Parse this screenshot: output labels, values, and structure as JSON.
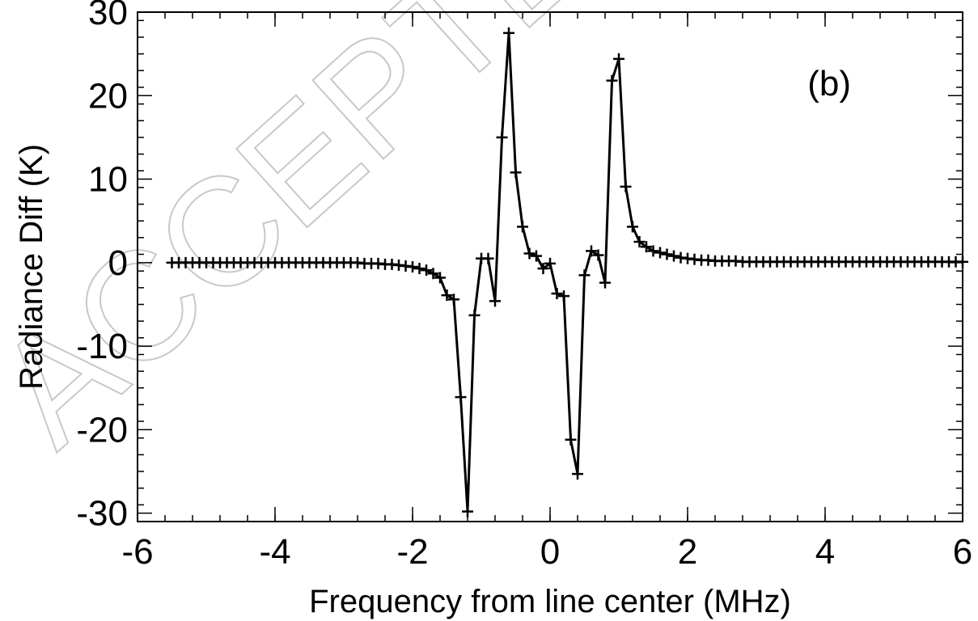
{
  "chart_data": {
    "type": "line",
    "title": "",
    "xlabel": "Frequency from line center (MHz)",
    "ylabel": "Radiance Diff (K)",
    "panel_label": "(b)",
    "watermark": "ACCEPTED",
    "xlim": [
      -6,
      6
    ],
    "ylim": [
      -31,
      30
    ],
    "x_ticks": [
      -6,
      -4,
      -2,
      0,
      2,
      4,
      6
    ],
    "x_tick_labels": [
      "-6",
      "-4",
      "-2",
      "0",
      "2",
      "4",
      "6"
    ],
    "y_ticks": [
      -30,
      -20,
      -10,
      0,
      10,
      20,
      30
    ],
    "y_tick_labels": [
      "-30",
      "-20",
      "-10",
      "0",
      "10",
      "20",
      "30"
    ],
    "x_minor_step": 0.4,
    "y_minor_step": 2,
    "grid": false,
    "marker": "plus",
    "color": "#000000",
    "series": [
      {
        "x": [
          -5.5,
          -5.4,
          -5.3,
          -5.2,
          -5.1,
          -5.0,
          -4.9,
          -4.8,
          -4.7,
          -4.6,
          -4.5,
          -4.4,
          -4.3,
          -4.2,
          -4.1,
          -4.0,
          -3.9,
          -3.8,
          -3.7,
          -3.6,
          -3.5,
          -3.4,
          -3.3,
          -3.2,
          -3.1,
          -3.0,
          -2.9,
          -2.8,
          -2.7,
          -2.6,
          -2.5,
          -2.4,
          -2.3,
          -2.2,
          -2.1,
          -2.0,
          -1.9,
          -1.8,
          -1.7,
          -1.6,
          -1.5,
          -1.4,
          -1.3,
          -1.2,
          -1.1,
          -1.0,
          -0.9,
          -0.8,
          -0.7,
          -0.6,
          -0.5,
          -0.4,
          -0.3,
          -0.2,
          -0.1,
          0.0,
          0.1,
          0.2,
          0.3,
          0.4,
          0.5,
          0.6,
          0.7,
          0.8,
          0.9,
          1.0,
          1.1,
          1.2,
          1.3,
          1.4,
          1.5,
          1.6,
          1.7,
          1.8,
          1.9,
          2.0,
          2.1,
          2.2,
          2.3,
          2.4,
          2.5,
          2.6,
          2.7,
          2.8,
          2.9,
          3.0,
          3.1,
          3.2,
          3.3,
          3.4,
          3.5,
          3.6,
          3.7,
          3.8,
          3.9,
          4.0,
          4.1,
          4.2,
          4.3,
          4.4,
          4.5,
          4.6,
          4.7,
          4.8,
          4.9,
          5.0,
          5.1,
          5.2,
          5.3,
          5.4,
          5.5,
          5.6,
          5.7,
          5.8,
          5.9,
          6.0
        ],
        "y": [
          0,
          0,
          0,
          0,
          0,
          0,
          0,
          0,
          0,
          0,
          0,
          0,
          0,
          0,
          0,
          0,
          0,
          0,
          0,
          0,
          0,
          0,
          0,
          0,
          0,
          0,
          0,
          0,
          -0.1,
          -0.1,
          -0.1,
          -0.2,
          -0.2,
          -0.3,
          -0.4,
          -0.5,
          -0.7,
          -0.9,
          -1.3,
          -1.8,
          -3.9,
          -4.4,
          -16.1,
          -29.8,
          -6.3,
          0.5,
          0.5,
          -4.6,
          15.0,
          27.5,
          10.8,
          4.3,
          1.1,
          0.8,
          -0.7,
          -0.1,
          -3.7,
          -4.0,
          -21.2,
          -25.3,
          -1.5,
          1.4,
          0.9,
          -2.4,
          21.8,
          24.4,
          9.1,
          4.3,
          2.5,
          1.9,
          1.4,
          1.2,
          1.0,
          0.8,
          0.6,
          0.5,
          0.4,
          0.3,
          0.3,
          0.2,
          0.2,
          0.2,
          0.2,
          0.1,
          0.1,
          0.1,
          0.1,
          0.1,
          0.1,
          0.1,
          0.1,
          0.1,
          0.1,
          0.1,
          0.1,
          0.1,
          0.1,
          0.1,
          0.1,
          0.1,
          0.1,
          0.1,
          0.1,
          0.1,
          0.1,
          0.1,
          0.1,
          0.1,
          0.1,
          0.1,
          0.1,
          0.1,
          0.1,
          0.1,
          0.1,
          0.1
        ]
      }
    ]
  }
}
